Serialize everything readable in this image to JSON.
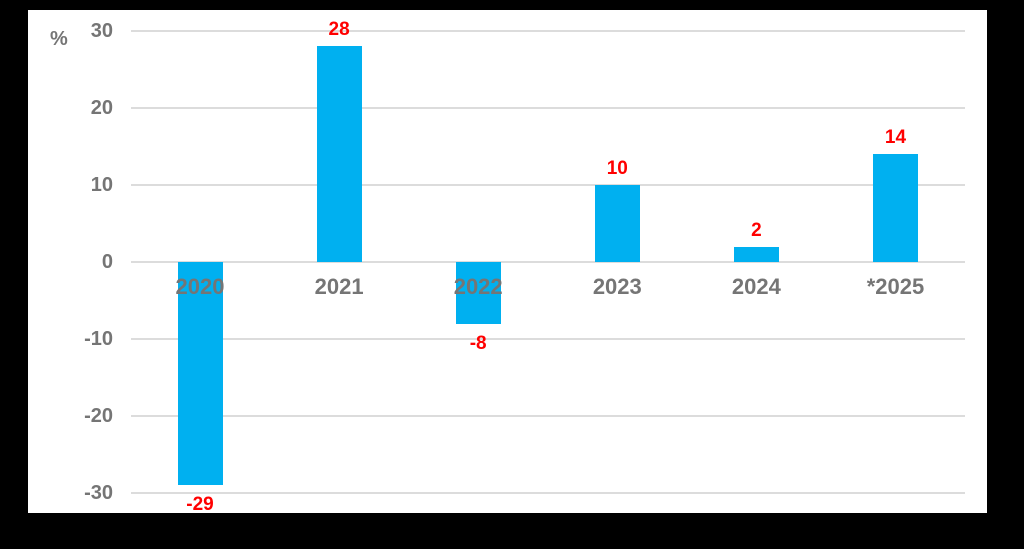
{
  "chart_data": {
    "type": "bar",
    "title": "",
    "unit_label": "%",
    "categories": [
      "2020",
      "2021",
      "2022",
      "2023",
      "2024",
      "*2025"
    ],
    "values": [
      -29,
      28,
      -8,
      10,
      2,
      14
    ],
    "data_labels": [
      "-29",
      "28",
      "-8",
      "10",
      "2",
      "14"
    ],
    "ylim": [
      -30,
      30
    ],
    "ytick_values": [
      30,
      20,
      10,
      0,
      -10,
      -20,
      -30
    ],
    "ytick_labels": [
      "30",
      "20",
      "10",
      "0",
      "-10",
      "-20",
      "-30"
    ],
    "grid": true,
    "legend_position": "none",
    "colors": {
      "bar": "#00B0F0",
      "data_label": "#FF0000",
      "axis_text": "#757575",
      "gridline": "#DCDCDC",
      "plot_background": "#FFFFFF",
      "canvas_background": "#000000"
    }
  }
}
